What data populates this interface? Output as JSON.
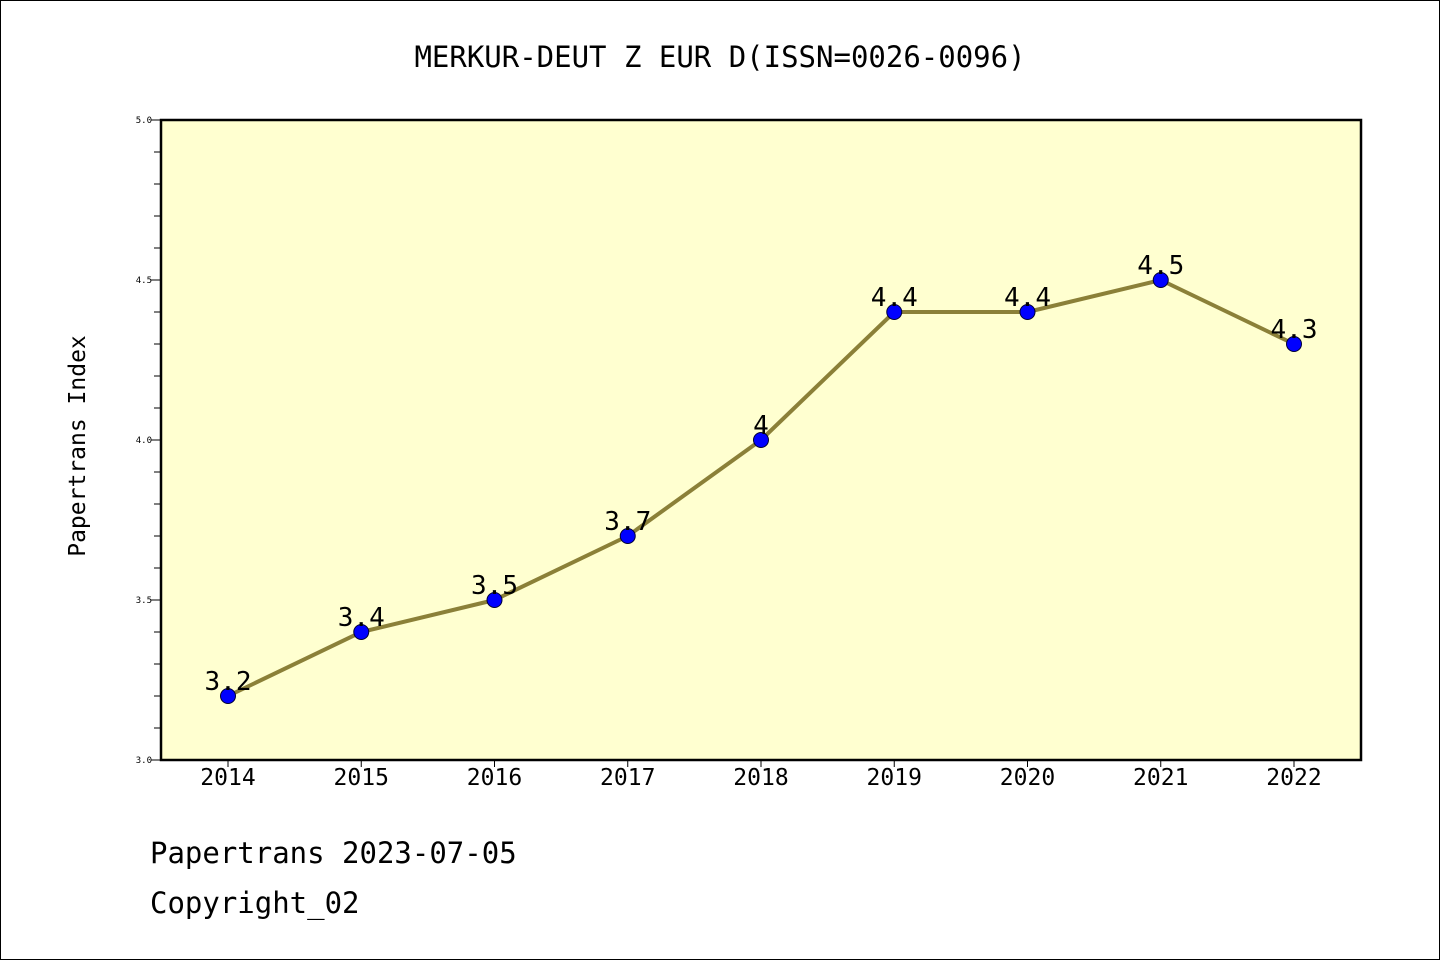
{
  "footer": {
    "line1": "Papertrans 2023-07-05",
    "line2": "Copyright_02"
  },
  "colors": {
    "plot_background": "#ffffd0",
    "line": "#8b8038",
    "marker": "#0000ff",
    "axis": "#000000"
  },
  "chart_data": {
    "type": "line",
    "title": "MERKUR-DEUT Z EUR D(ISSN=0026-0096)",
    "xlabel": "",
    "ylabel": "Papertrans Index",
    "categories": [
      "2014",
      "2015",
      "2016",
      "2017",
      "2018",
      "2019",
      "2020",
      "2021",
      "2022"
    ],
    "series": [
      {
        "values": [
          3.2,
          3.4,
          3.5,
          3.7,
          4.0,
          4.4,
          4.4,
          4.5,
          4.3
        ],
        "data_labels": [
          "3.2",
          "3.4",
          "3.5",
          "3.7",
          "4",
          "4.4",
          "4.4",
          "4.5",
          "4.3"
        ]
      }
    ],
    "ylim": [
      3.0,
      5.0
    ],
    "yticks": [
      "3.0",
      "3.5",
      "4.0",
      "4.5",
      "5.0"
    ],
    "y_minor_step": 0.1,
    "grid": false,
    "legend": "none"
  }
}
